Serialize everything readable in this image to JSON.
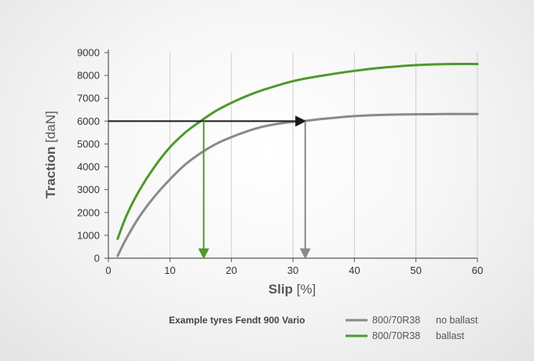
{
  "chart_data": {
    "type": "line",
    "xlabel_main": "Slip",
    "xlabel_unit": " [%]",
    "ylabel_main": "Traction",
    "ylabel_unit": " [daN]",
    "xlim": [
      0,
      60
    ],
    "ylim": [
      0,
      9000
    ],
    "xticks": [
      "0",
      "10",
      "20",
      "30",
      "40",
      "50",
      "60"
    ],
    "yticks": [
      "0",
      "1000",
      "2000",
      "3000",
      "4000",
      "5000",
      "6000",
      "7000",
      "8000",
      "9000"
    ],
    "grid": "vertical",
    "legend_title": "Example tyres Fendt 900 Vario",
    "series": [
      {
        "name": "800/70R38",
        "condition": "no ballast",
        "color": "#8a8a8a",
        "x": [
          1.5,
          3,
          5,
          7.5,
          10,
          12.5,
          15,
          17.5,
          20,
          22.5,
          25,
          27.5,
          30,
          32,
          35,
          40,
          45,
          50,
          55,
          60
        ],
        "y": [
          100,
          900,
          1800,
          2700,
          3450,
          4100,
          4600,
          5000,
          5300,
          5550,
          5750,
          5880,
          5970,
          6010,
          6100,
          6220,
          6280,
          6300,
          6310,
          6310
        ]
      },
      {
        "name": "800/70R38",
        "condition": "ballast",
        "color": "#4e9a2c",
        "x": [
          1.5,
          3,
          5,
          7.5,
          10,
          12.5,
          15,
          17.5,
          20,
          22.5,
          25,
          30,
          35,
          40,
          45,
          50,
          55,
          60
        ],
        "y": [
          850,
          1900,
          2950,
          4000,
          4850,
          5500,
          6000,
          6450,
          6800,
          7100,
          7350,
          7750,
          8000,
          8200,
          8350,
          8450,
          8500,
          8500
        ]
      }
    ],
    "annotations": [
      {
        "from": [
          0,
          6000
        ],
        "to": [
          32,
          6000
        ],
        "color": "#1a1a1a"
      },
      {
        "from": [
          15.5,
          6000
        ],
        "to": [
          15.5,
          0
        ],
        "color": "#4e9a2c"
      },
      {
        "from": [
          32,
          6000
        ],
        "to": [
          32,
          0
        ],
        "color": "#8a8a8a"
      }
    ]
  }
}
